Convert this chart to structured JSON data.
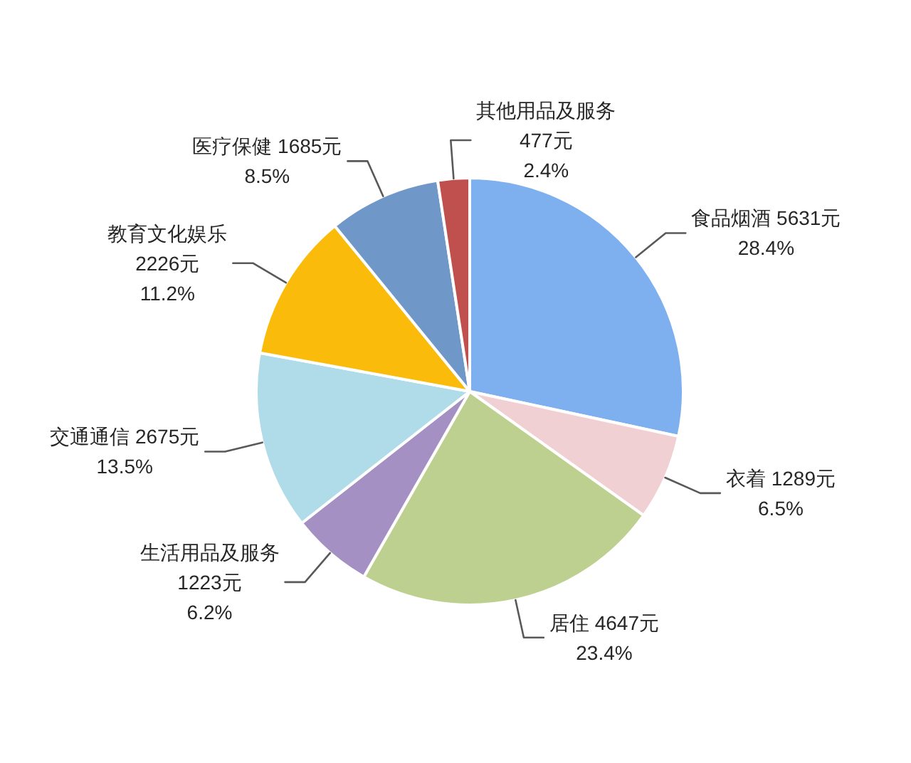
{
  "chart_data": {
    "type": "pie",
    "categories": [
      "食品烟酒",
      "衣着",
      "居住",
      "生活用品及服务",
      "交通通信",
      "教育文化娱乐",
      "医疗保健",
      "其他用品及服务"
    ],
    "values": [
      5631,
      1289,
      4647,
      1223,
      2675,
      2226,
      1685,
      477
    ],
    "colors": [
      "#7eb0f0",
      "#f0d0d2",
      "#bed08f",
      "#a590c3",
      "#b0dbe8",
      "#fbbb0a",
      "#6f97c8",
      "#c0504d"
    ],
    "value_labels": [
      "5631元\n28.4%",
      "1289元\n6.5%",
      "4647元\n23.4%",
      "1223元\n6.2%",
      "2675元\n13.5%",
      "2226元\n11.2%",
      "1685元\n8.5%",
      "477元\n2.4%"
    ]
  }
}
